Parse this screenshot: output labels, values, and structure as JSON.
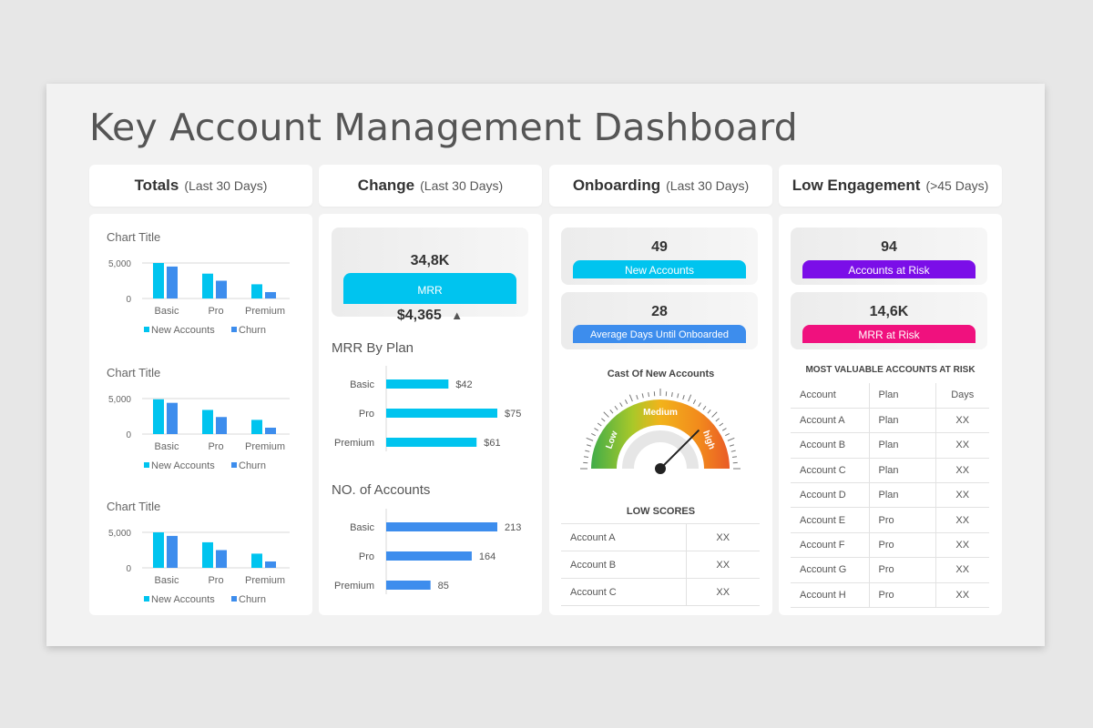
{
  "title": "Key Account Management Dashboard",
  "headers": [
    {
      "bold": "Totals",
      "sub": "(Last 30 Days)"
    },
    {
      "bold": "Change",
      "sub": "(Last 30 Days)"
    },
    {
      "bold": "Onboarding",
      "sub": "(Last 30 Days)"
    },
    {
      "bold": "Low Engagement",
      "sub": "(>45 Days)"
    }
  ],
  "colors": {
    "cyan": "#00c4ef",
    "blue": "#3d8ded",
    "purple": "#7b0ee8",
    "pink": "#f0117e"
  },
  "chart_data": [
    {
      "type": "bar",
      "title": "Chart Title",
      "categories": [
        "Basic",
        "Pro",
        "Premium"
      ],
      "series": [
        {
          "name": "New Accounts",
          "values": [
            5000,
            3500,
            2000
          ]
        },
        {
          "name": "Churn",
          "values": [
            4500,
            2500,
            900
          ]
        }
      ],
      "yticks": [
        "5,000",
        "0"
      ],
      "ylim": [
        0,
        5000
      ],
      "legend": "bottom",
      "grid": true
    },
    {
      "type": "bar",
      "title": "Chart Title",
      "categories": [
        "Basic",
        "Pro",
        "Premium"
      ],
      "series": [
        {
          "name": "New Accounts",
          "values": [
            4900,
            3400,
            2000
          ]
        },
        {
          "name": "Churn",
          "values": [
            4400,
            2400,
            900
          ]
        }
      ],
      "yticks": [
        "5,000",
        "0"
      ],
      "ylim": [
        0,
        5000
      ],
      "legend": "bottom",
      "grid": true
    },
    {
      "type": "bar",
      "title": "Chart Title",
      "categories": [
        "Basic",
        "Pro",
        "Premium"
      ],
      "series": [
        {
          "name": "New Accounts",
          "values": [
            5000,
            3600,
            2000
          ]
        },
        {
          "name": "Churn",
          "values": [
            4500,
            2500,
            900
          ]
        }
      ],
      "yticks": [
        "5,000",
        "0"
      ],
      "ylim": [
        0,
        5000
      ],
      "legend": "bottom",
      "grid": true
    },
    {
      "type": "bar",
      "orientation": "horizontal",
      "title": "MRR By Plan",
      "categories": [
        "Basic",
        "Pro",
        "Premium"
      ],
      "values": [
        42,
        75,
        61
      ],
      "labels": [
        "$42",
        "$75",
        "$61"
      ],
      "xlim": [
        0,
        75
      ]
    },
    {
      "type": "bar",
      "orientation": "horizontal",
      "title": "NO. of Accounts",
      "categories": [
        "Basic",
        "Pro",
        "Premium"
      ],
      "values": [
        213,
        164,
        85
      ],
      "labels": [
        "213",
        "164",
        "85"
      ],
      "xlim": [
        0,
        213
      ]
    }
  ],
  "change": {
    "value": "34,8K",
    "label": "MRR",
    "amount": "$4,365",
    "trend": "▲"
  },
  "onboarding": {
    "kpi1": {
      "value": "49",
      "label": "New Accounts"
    },
    "kpi2": {
      "value": "28",
      "label": "Average Days Until Onboarded"
    },
    "gauge": {
      "title": "Cast Of New Accounts",
      "labels": [
        "Low",
        "Medium",
        "high"
      ],
      "level": 0.75
    },
    "low_scores": {
      "title": "LOW SCORES",
      "rows": [
        [
          "Account A",
          "XX"
        ],
        [
          "Account B",
          "XX"
        ],
        [
          "Account C",
          "XX"
        ]
      ]
    }
  },
  "engagement": {
    "kpi1": {
      "value": "94",
      "label": "Accounts at Risk"
    },
    "kpi2": {
      "value": "14,6K",
      "label": "MRR at Risk"
    },
    "table_title": "MOST VALUABLE ACCOUNTS AT RISK",
    "columns": [
      "Account",
      "Plan",
      "Days"
    ],
    "rows": [
      [
        "Account A",
        "Plan",
        "XX"
      ],
      [
        "Account B",
        "Plan",
        "XX"
      ],
      [
        "Account C",
        "Plan",
        "XX"
      ],
      [
        "Account D",
        "Plan",
        "XX"
      ],
      [
        "Account E",
        "Pro",
        "XX"
      ],
      [
        "Account F",
        "Pro",
        "XX"
      ],
      [
        "Account G",
        "Pro",
        "XX"
      ],
      [
        "Account H",
        "Pro",
        "XX"
      ]
    ]
  }
}
